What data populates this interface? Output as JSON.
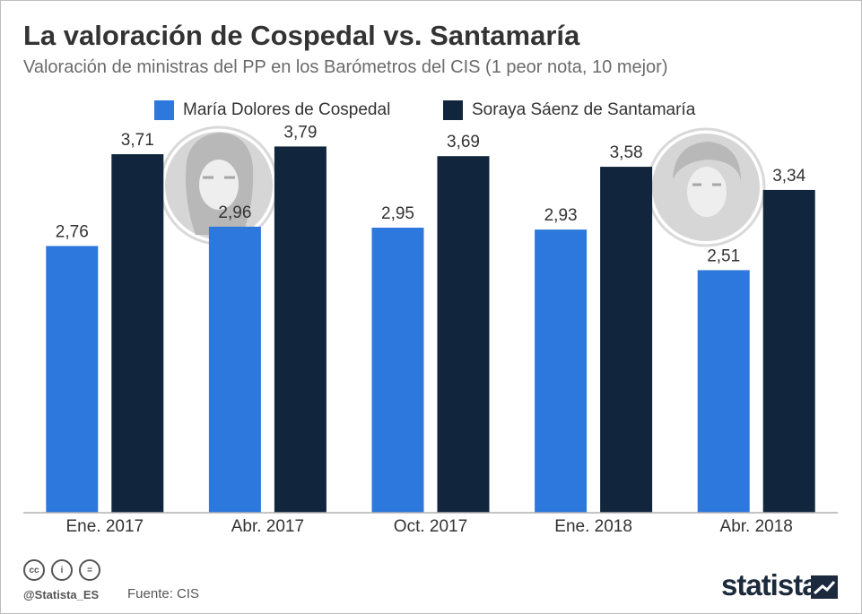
{
  "title": "La valoración de Cospedal vs. Santamaría",
  "subtitle": "Valoración de ministras del PP en los Barómetros del CIS (1 peor nota, 10 mejor)",
  "colors": {
    "cospedal": "#2d78dc",
    "santamaria": "#11263c",
    "axis": "#b0b0b0",
    "portrait": "#cfcfcf"
  },
  "chart_data": {
    "type": "bar",
    "categories": [
      "Ene. 2017",
      "Abr. 2017",
      "Oct. 2017",
      "Ene. 2018",
      "Abr. 2018"
    ],
    "series": [
      {
        "name": "María Dolores de Cospedal",
        "values": [
          2.76,
          2.96,
          2.95,
          2.93,
          2.51
        ],
        "labels": [
          "2,76",
          "2,96",
          "2,95",
          "2,93",
          "2,51"
        ]
      },
      {
        "name": "Soraya Sáenz de Santamaría",
        "values": [
          3.71,
          3.79,
          3.69,
          3.58,
          3.34
        ],
        "labels": [
          "3,71",
          "3,79",
          "3,69",
          "3,58",
          "3,34"
        ]
      }
    ],
    "ylim": [
      0,
      4.1
    ],
    "grid": false,
    "legend": "top-center"
  },
  "footer": {
    "icons": [
      "cc-icon",
      "attribution-icon",
      "equals-icon"
    ],
    "handle": "@Statista_ES",
    "source": "Fuente: CIS",
    "brand": "statista"
  }
}
